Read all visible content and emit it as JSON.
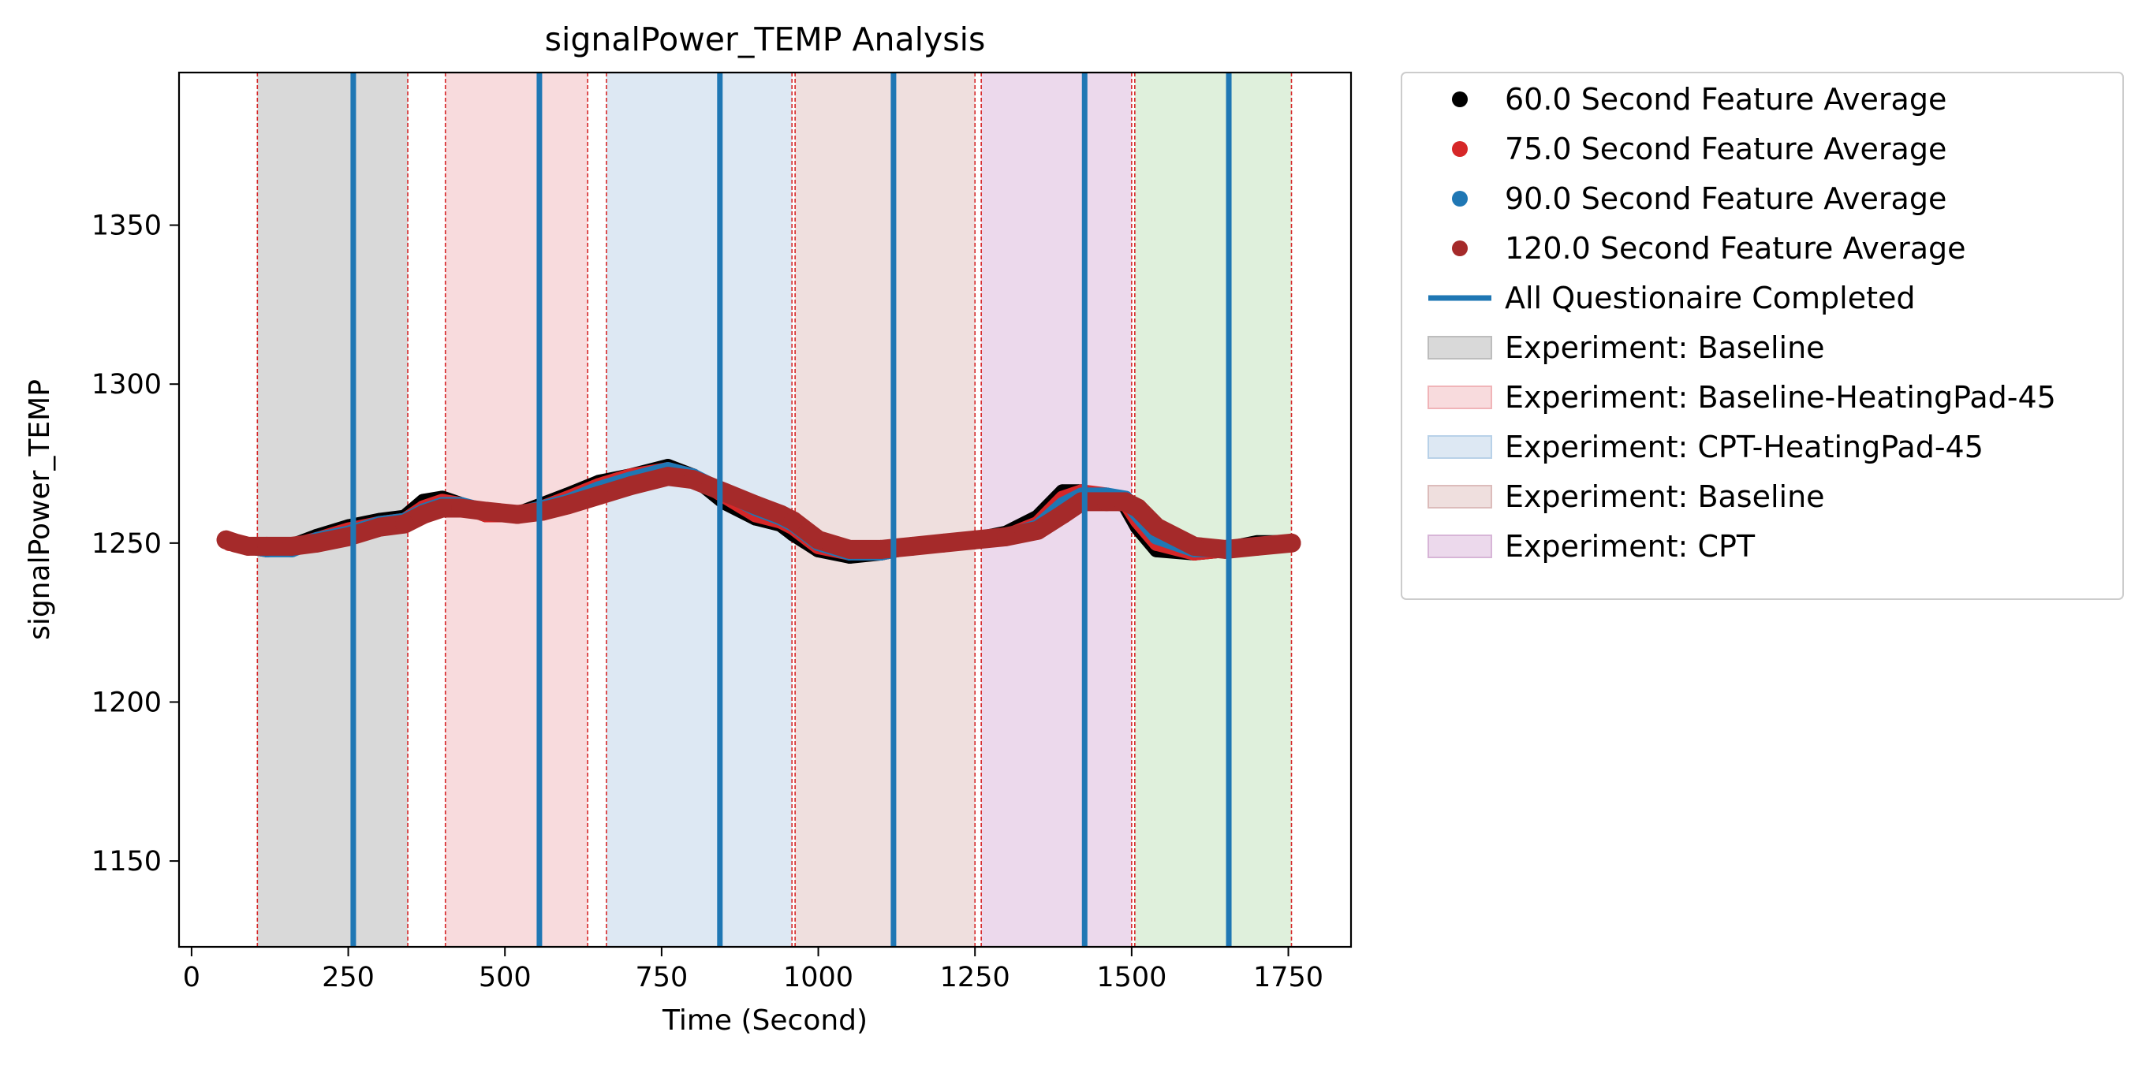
{
  "chart_data": {
    "type": "scatter",
    "title": "signalPower_TEMP Analysis",
    "xlabel": "Time (Second)",
    "ylabel": "signalPower_TEMP",
    "xlim": [
      -20,
      1850
    ],
    "ylim": [
      1123,
      1398
    ],
    "x_ticks": [
      0,
      250,
      500,
      750,
      1000,
      1250,
      1500,
      1750
    ],
    "y_ticks": [
      1150,
      1200,
      1250,
      1300,
      1350
    ],
    "grid": false,
    "legend_position": "outside-right",
    "regions": [
      {
        "label": "Experiment: Baseline",
        "start": 105,
        "end": 345,
        "color": "#d9d9d9"
      },
      {
        "label": "Experiment: Baseline-HeatingPad-45",
        "start": 405,
        "end": 632,
        "color": "#f8dbdd"
      },
      {
        "label": "Experiment: CPT-HeatingPad-45",
        "start": 662,
        "end": 958,
        "color": "#dde8f3"
      },
      {
        "label": "Experiment: Baseline",
        "start": 963,
        "end": 1250,
        "color": "#efdfde"
      },
      {
        "label": "Experiment: CPT",
        "start": 1260,
        "end": 1500,
        "color": "#ecd9ec"
      },
      {
        "label": "",
        "start": 1505,
        "end": 1755,
        "color": "#dff0dc"
      }
    ],
    "questionnaire_completed_x": [
      258,
      555,
      843,
      1120,
      1425,
      1655
    ],
    "series": [
      {
        "name": "60.0 Second Feature Average",
        "color": "#000000",
        "start": 65,
        "end": 1745,
        "x": [
          65,
          90,
          120,
          160,
          200,
          250,
          300,
          340,
          370,
          400,
          430,
          470,
          520,
          560,
          600,
          650,
          700,
          760,
          800,
          850,
          900,
          940,
          960,
          1000,
          1050,
          1100,
          1150,
          1200,
          1250,
          1300,
          1350,
          1390,
          1420,
          1460,
          1490,
          1510,
          1540,
          1600,
          1650,
          1700,
          1745
        ],
        "y": [
          1250,
          1249,
          1248,
          1249,
          1252,
          1255,
          1257,
          1258,
          1263,
          1264,
          1262,
          1259,
          1259,
          1262,
          1265,
          1269,
          1271,
          1274,
          1271,
          1263,
          1258,
          1256,
          1253,
          1248,
          1246,
          1247,
          1249,
          1250,
          1251,
          1253,
          1258,
          1266,
          1266,
          1264,
          1262,
          1255,
          1248,
          1247,
          1248,
          1250,
          1250
        ]
      },
      {
        "name": "75.0 Second Feature Average",
        "color": "#d62728",
        "start": 60,
        "end": 1750,
        "x": [
          60,
          90,
          120,
          160,
          200,
          250,
          300,
          340,
          370,
          400,
          430,
          470,
          520,
          560,
          600,
          650,
          700,
          760,
          800,
          850,
          900,
          940,
          960,
          1000,
          1050,
          1100,
          1150,
          1200,
          1250,
          1300,
          1350,
          1390,
          1420,
          1460,
          1490,
          1510,
          1540,
          1600,
          1650,
          1700,
          1750
        ],
        "y": [
          1250,
          1249,
          1248,
          1249,
          1251,
          1254,
          1256,
          1257,
          1261,
          1263,
          1262,
          1259,
          1259,
          1261,
          1264,
          1268,
          1271,
          1273,
          1271,
          1265,
          1259,
          1257,
          1255,
          1249,
          1247,
          1247,
          1249,
          1250,
          1251,
          1252,
          1256,
          1264,
          1266,
          1265,
          1263,
          1257,
          1250,
          1247,
          1248,
          1249,
          1250
        ]
      },
      {
        "name": "90.0 Second Feature Average",
        "color": "#1f77b4",
        "start": 58,
        "end": 1752,
        "x": [
          58,
          90,
          120,
          160,
          200,
          250,
          300,
          340,
          370,
          400,
          430,
          470,
          520,
          560,
          600,
          650,
          700,
          760,
          800,
          850,
          900,
          940,
          960,
          1000,
          1050,
          1100,
          1150,
          1200,
          1250,
          1300,
          1350,
          1390,
          1420,
          1460,
          1490,
          1510,
          1540,
          1600,
          1650,
          1700,
          1752
        ],
        "y": [
          1251,
          1249,
          1248,
          1248,
          1251,
          1253,
          1256,
          1257,
          1260,
          1262,
          1262,
          1260,
          1259,
          1261,
          1263,
          1267,
          1270,
          1273,
          1271,
          1266,
          1261,
          1258,
          1256,
          1250,
          1247,
          1247,
          1249,
          1250,
          1251,
          1252,
          1255,
          1262,
          1265,
          1265,
          1264,
          1259,
          1252,
          1248,
          1248,
          1249,
          1250
        ]
      },
      {
        "name": "120.0 Second Feature Average",
        "color": "#a52a2a",
        "start": 55,
        "end": 1755,
        "x": [
          55,
          70,
          90,
          120,
          160,
          200,
          250,
          300,
          340,
          370,
          400,
          430,
          470,
          520,
          560,
          600,
          650,
          700,
          760,
          800,
          850,
          900,
          940,
          960,
          1000,
          1050,
          1100,
          1150,
          1200,
          1250,
          1300,
          1350,
          1390,
          1420,
          1460,
          1490,
          1510,
          1540,
          1600,
          1650,
          1700,
          1755
        ],
        "y": [
          1251,
          1250,
          1249,
          1249,
          1249,
          1250,
          1252,
          1255,
          1256,
          1259,
          1261,
          1261,
          1260,
          1259,
          1260,
          1262,
          1265,
          1268,
          1271,
          1270,
          1266,
          1262,
          1259,
          1257,
          1251,
          1248,
          1248,
          1249,
          1250,
          1251,
          1252,
          1254,
          1259,
          1263,
          1263,
          1263,
          1261,
          1255,
          1249,
          1248,
          1249,
          1250
        ]
      }
    ],
    "legend_entries": [
      {
        "label": "60.0 Second Feature Average",
        "kind": "marker",
        "color": "#000000"
      },
      {
        "label": "75.0 Second Feature Average",
        "kind": "marker",
        "color": "#d62728"
      },
      {
        "label": "90.0 Second Feature Average",
        "kind": "marker",
        "color": "#1f77b4"
      },
      {
        "label": "120.0 Second Feature Average",
        "kind": "marker",
        "color": "#a52a2a"
      },
      {
        "label": "All Questionaire Completed",
        "kind": "line",
        "color": "#1f77b4"
      },
      {
        "label": "Experiment: Baseline",
        "kind": "patch",
        "color": "#d9d9d9",
        "edge": "#bdbdbd"
      },
      {
        "label": "Experiment: Baseline-HeatingPad-45",
        "kind": "patch",
        "color": "#f8dbdd",
        "edge": "#f0b4b8"
      },
      {
        "label": "Experiment: CPT-HeatingPad-45",
        "kind": "patch",
        "color": "#dde8f3",
        "edge": "#b8d1e8"
      },
      {
        "label": "Experiment: Baseline",
        "kind": "patch",
        "color": "#efdfde",
        "edge": "#dcbcbb"
      },
      {
        "label": "Experiment: CPT",
        "kind": "patch",
        "color": "#ecd9ec",
        "edge": "#d7b5d7"
      }
    ]
  }
}
